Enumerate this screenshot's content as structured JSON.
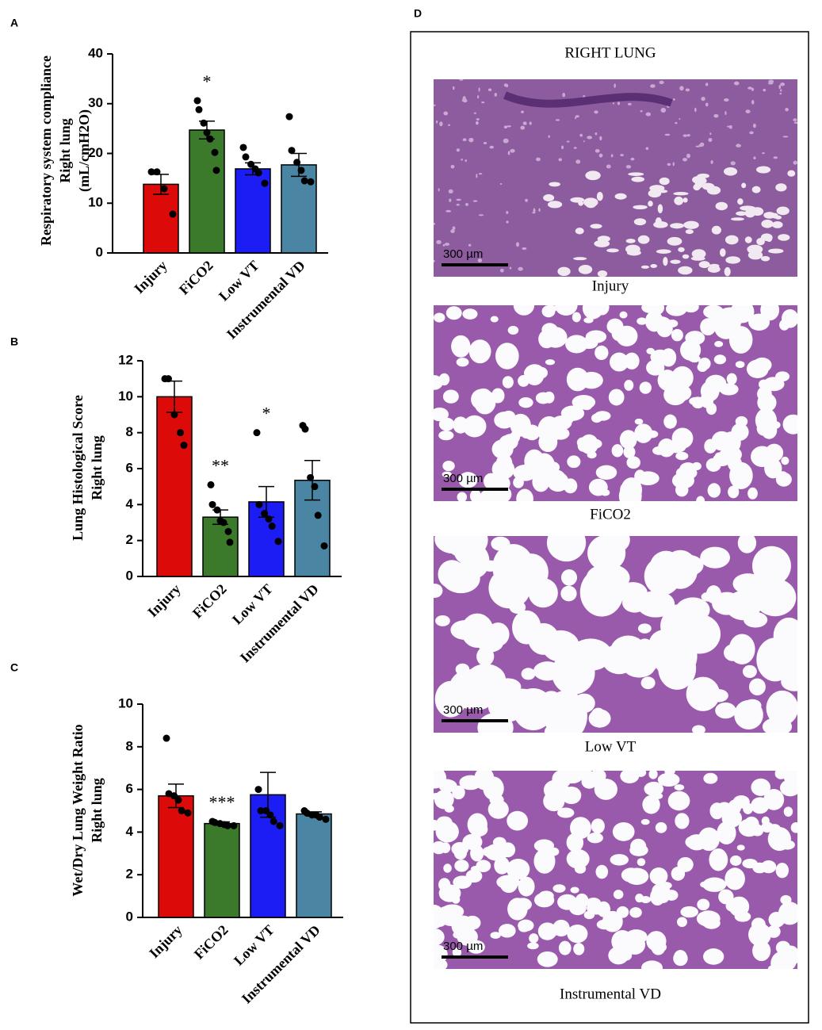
{
  "chart_data": [
    {
      "type": "bar",
      "label": "A",
      "ylabel": [
        "Respiratory system compliance",
        "Right lung",
        "(mL/cmH2O)"
      ],
      "categories": [
        "Injury",
        "FiCO2",
        "Low VT",
        "Instrumental VD"
      ],
      "colors": [
        "#dd0a0a",
        "#3b7a2b",
        "#1c1cf5",
        "#4a86a4"
      ],
      "values": [
        13.8,
        24.7,
        16.9,
        17.7
      ],
      "errors": [
        2.0,
        1.8,
        1.2,
        2.3
      ],
      "points": [
        [
          16.3,
          16.3,
          12.9,
          7.8
        ],
        [
          30.6,
          28.8,
          26.1,
          24.2,
          22.9,
          20.2,
          16.6
        ],
        [
          21.2,
          19.3,
          17.8,
          16.9,
          16.1,
          14.0
        ],
        [
          27.4,
          20.6,
          18.2,
          16.6,
          14.5,
          14.3
        ]
      ],
      "annotations": [
        {
          "category": "FiCO2",
          "text": "*"
        }
      ],
      "ylim": [
        0,
        40
      ],
      "yticks": [
        0,
        10,
        20,
        30,
        40
      ]
    },
    {
      "type": "bar",
      "label": "B",
      "ylabel": [
        "Lung Histological Score",
        "Right lung"
      ],
      "categories": [
        "Injury",
        "FiCO2",
        "Low VT",
        "Instrumental VD"
      ],
      "colors": [
        "#dd0a0a",
        "#3b7a2b",
        "#1c1cf5",
        "#4a86a4"
      ],
      "values": [
        10.0,
        3.3,
        4.15,
        5.35
      ],
      "errors": [
        0.87,
        0.4,
        0.85,
        1.1
      ],
      "points": [
        [
          11,
          11,
          9,
          8,
          7.3
        ],
        [
          5.1,
          4.0,
          3.7,
          3.1,
          3.0,
          2.5,
          1.9
        ],
        [
          8.0,
          4.0,
          3.5,
          3.2,
          2.8,
          1.95
        ],
        [
          8.4,
          8.2,
          5.5,
          5.0,
          3.4,
          1.7
        ]
      ],
      "annotations": [
        {
          "category": "FiCO2",
          "text": "**"
        },
        {
          "category": "Low VT",
          "text": "*"
        }
      ],
      "ylim": [
        0,
        12
      ],
      "yticks": [
        0,
        2,
        4,
        6,
        8,
        10,
        12
      ]
    },
    {
      "type": "bar",
      "label": "C",
      "ylabel": [
        "Wet/Dry Lung Weight Ratio",
        "Right lung"
      ],
      "categories": [
        "Injury",
        "FiCO2",
        "Low VT",
        "Instrumental VD"
      ],
      "colors": [
        "#dd0a0a",
        "#3b7a2b",
        "#1c1cf5",
        "#4a86a4"
      ],
      "values": [
        5.7,
        4.4,
        5.75,
        4.85
      ],
      "errors": [
        0.55,
        0.08,
        1.05,
        0.1
      ],
      "points": [
        [
          8.4,
          5.8,
          5.7,
          5.5,
          5.0,
          4.9
        ],
        [
          4.5,
          4.45,
          4.4,
          4.35,
          4.3,
          4.3
        ],
        [
          6.0,
          5.0,
          5.0,
          4.8,
          4.5,
          4.3
        ],
        [
          5.0,
          4.9,
          4.8,
          4.8,
          4.7,
          4.6
        ]
      ],
      "annotations": [
        {
          "category": "FiCO2",
          "text": "***"
        }
      ],
      "ylim": [
        0,
        10
      ],
      "yticks": [
        0,
        2,
        4,
        6,
        8,
        10
      ]
    }
  ],
  "panel_d": {
    "label": "D",
    "title": "RIGHT LUNG",
    "images": [
      {
        "caption": "Injury",
        "scale_bar": "300 µm"
      },
      {
        "caption": "FiCO2",
        "scale_bar": "300 µm"
      },
      {
        "caption": "Low VT",
        "scale_bar": "300 µm"
      },
      {
        "caption": "Instrumental VD",
        "scale_bar": "300 µm"
      }
    ]
  }
}
